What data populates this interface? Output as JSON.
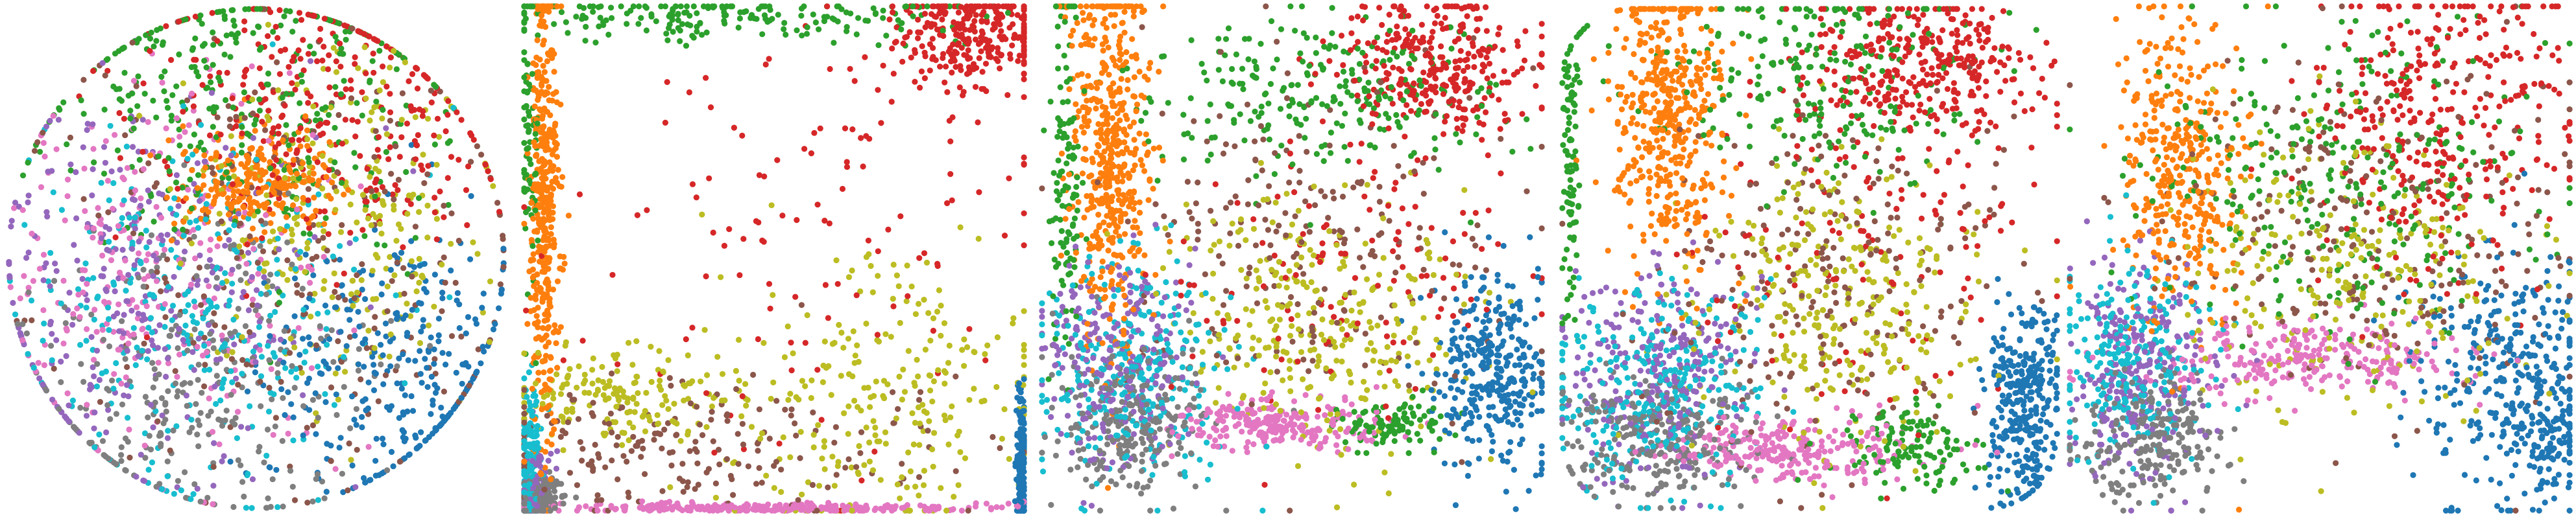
{
  "figure": {
    "description_type": "scatter-panels",
    "panel_count": 5
  },
  "palette": {
    "blue": "#1f77b4",
    "orange": "#ff7f0e",
    "green": "#2ca02c",
    "red": "#d62728",
    "purple": "#9467bd",
    "brown": "#8c564b",
    "pink": "#e377c2",
    "gray": "#7f7f7f",
    "olive": "#bcbd22",
    "cyan": "#17becf"
  },
  "chart_data": [
    {
      "type": "scatter",
      "title": "",
      "xlabel": "",
      "ylabel": "",
      "axes_visible": false,
      "grid": false,
      "legend": "none",
      "xlim": [
        -1,
        1
      ],
      "ylim": [
        -1,
        1
      ],
      "shape": "disc",
      "clusters": [
        {
          "color": "red",
          "cx": 0.25,
          "cy": 0.55,
          "sx": 0.35,
          "sy": 0.3,
          "n": 320
        },
        {
          "color": "green",
          "cx": -0.05,
          "cy": 0.6,
          "sx": 0.4,
          "sy": 0.3,
          "n": 320
        },
        {
          "color": "orange",
          "cx": 0.0,
          "cy": 0.3,
          "sx": 0.14,
          "sy": 0.1,
          "n": 260
        },
        {
          "color": "olive",
          "cx": 0.35,
          "cy": 0.15,
          "sx": 0.3,
          "sy": 0.35,
          "n": 250
        },
        {
          "color": "brown",
          "cx": 0.1,
          "cy": 0.05,
          "sx": 0.5,
          "sy": 0.5,
          "n": 260
        },
        {
          "color": "purple",
          "cx": -0.45,
          "cy": -0.15,
          "sx": 0.35,
          "sy": 0.35,
          "n": 300
        },
        {
          "color": "cyan",
          "cx": -0.25,
          "cy": -0.2,
          "sx": 0.35,
          "sy": 0.35,
          "n": 300
        },
        {
          "color": "pink",
          "cx": -0.4,
          "cy": -0.05,
          "sx": 0.35,
          "sy": 0.4,
          "n": 260
        },
        {
          "color": "gray",
          "cx": -0.25,
          "cy": -0.55,
          "sx": 0.35,
          "sy": 0.3,
          "n": 280
        },
        {
          "color": "blue",
          "cx": 0.55,
          "cy": -0.45,
          "sx": 0.25,
          "sy": 0.3,
          "n": 300
        }
      ]
    },
    {
      "type": "scatter",
      "title": "",
      "xlabel": "",
      "ylabel": "",
      "axes_visible": false,
      "grid": false,
      "legend": "none",
      "xlim": [
        -1,
        1
      ],
      "ylim": [
        -1,
        1
      ],
      "shape": "square",
      "clusters": [
        {
          "color": "orange",
          "cx": -0.91,
          "cy": 0.2,
          "sx": 0.03,
          "sy": 0.5,
          "n": 420
        },
        {
          "color": "red",
          "cx": 0.8,
          "cy": 0.88,
          "sx": 0.15,
          "sy": 0.1,
          "n": 300
        },
        {
          "color": "green",
          "cx": -0.2,
          "cy": 0.95,
          "sx": 0.45,
          "sy": 0.05,
          "n": 200
        },
        {
          "color": "green",
          "cx": -0.97,
          "cy": 0.5,
          "sx": 0.02,
          "sy": 0.3,
          "n": 80
        },
        {
          "color": "olive",
          "cx": 0.4,
          "cy": -0.55,
          "sx": 0.35,
          "sy": 0.3,
          "n": 260
        },
        {
          "color": "olive",
          "cx": -0.6,
          "cy": -0.55,
          "sx": 0.25,
          "sy": 0.1,
          "n": 160
        },
        {
          "color": "brown",
          "cx": -0.3,
          "cy": -0.75,
          "sx": 0.5,
          "sy": 0.15,
          "n": 200
        },
        {
          "color": "pink",
          "cx": 0.0,
          "cy": -0.98,
          "sx": 0.45,
          "sy": 0.01,
          "n": 300
        },
        {
          "color": "cyan",
          "cx": -0.97,
          "cy": -0.8,
          "sx": 0.02,
          "sy": 0.15,
          "n": 160
        },
        {
          "color": "gray",
          "cx": -0.93,
          "cy": -0.95,
          "sx": 0.05,
          "sy": 0.04,
          "n": 160
        },
        {
          "color": "purple",
          "cx": -0.95,
          "cy": -0.9,
          "sx": 0.03,
          "sy": 0.08,
          "n": 100
        },
        {
          "color": "blue",
          "cx": 0.98,
          "cy": -0.8,
          "sx": 0.01,
          "sy": 0.15,
          "n": 200
        },
        {
          "color": "red",
          "cx": 0.1,
          "cy": 0.05,
          "sx": 0.5,
          "sy": 0.5,
          "n": 120
        }
      ]
    },
    {
      "type": "scatter",
      "title": "",
      "xlabel": "",
      "ylabel": "",
      "axes_visible": false,
      "grid": false,
      "legend": "none",
      "xlim": [
        -1,
        1
      ],
      "ylim": [
        -1,
        1
      ],
      "shape": "square",
      "clusters": [
        {
          "color": "orange",
          "cx": -0.72,
          "cy": 0.4,
          "sx": 0.08,
          "sy": 0.4,
          "n": 500
        },
        {
          "color": "red",
          "cx": 0.55,
          "cy": 0.75,
          "sx": 0.2,
          "sy": 0.15,
          "n": 320
        },
        {
          "color": "green",
          "cx": 0.1,
          "cy": 0.65,
          "sx": 0.35,
          "sy": 0.15,
          "n": 260
        },
        {
          "color": "green",
          "cx": -0.9,
          "cy": 0.3,
          "sx": 0.03,
          "sy": 0.4,
          "n": 120
        },
        {
          "color": "green",
          "cx": 0.4,
          "cy": -0.65,
          "sx": 0.1,
          "sy": 0.05,
          "n": 100
        },
        {
          "color": "olive",
          "cx": 0.1,
          "cy": -0.25,
          "sx": 0.3,
          "sy": 0.25,
          "n": 300
        },
        {
          "color": "brown",
          "cx": 0.1,
          "cy": 0.1,
          "sx": 0.4,
          "sy": 0.35,
          "n": 220
        },
        {
          "color": "blue",
          "cx": 0.8,
          "cy": -0.45,
          "sx": 0.12,
          "sy": 0.2,
          "n": 340
        },
        {
          "color": "pink",
          "cx": -0.05,
          "cy": -0.65,
          "sx": 0.2,
          "sy": 0.05,
          "n": 240
        },
        {
          "color": "purple",
          "cx": -0.7,
          "cy": -0.4,
          "sx": 0.15,
          "sy": 0.2,
          "n": 260
        },
        {
          "color": "cyan",
          "cx": -0.65,
          "cy": -0.45,
          "sx": 0.18,
          "sy": 0.22,
          "n": 300
        },
        {
          "color": "gray",
          "cx": -0.65,
          "cy": -0.65,
          "sx": 0.15,
          "sy": 0.15,
          "n": 240
        },
        {
          "color": "red",
          "cx": 0.3,
          "cy": -0.1,
          "sx": 0.35,
          "sy": 0.3,
          "n": 120
        }
      ]
    },
    {
      "type": "scatter",
      "title": "",
      "xlabel": "",
      "ylabel": "",
      "axes_visible": false,
      "grid": false,
      "legend": "none",
      "xlim": [
        -1,
        1
      ],
      "ylim": [
        -1,
        1
      ],
      "shape": "rounded",
      "clusters": [
        {
          "color": "orange",
          "cx": -0.55,
          "cy": 0.55,
          "sx": 0.12,
          "sy": 0.3,
          "n": 460
        },
        {
          "color": "red",
          "cx": 0.45,
          "cy": 0.75,
          "sx": 0.25,
          "sy": 0.15,
          "n": 340
        },
        {
          "color": "green",
          "cx": 0.05,
          "cy": 0.7,
          "sx": 0.3,
          "sy": 0.2,
          "n": 240
        },
        {
          "color": "green",
          "cx": -0.95,
          "cy": 0.3,
          "sx": 0.02,
          "sy": 0.35,
          "n": 100
        },
        {
          "color": "green",
          "cx": 0.4,
          "cy": -0.75,
          "sx": 0.15,
          "sy": 0.08,
          "n": 120
        },
        {
          "color": "olive",
          "cx": 0.1,
          "cy": -0.2,
          "sx": 0.3,
          "sy": 0.3,
          "n": 300
        },
        {
          "color": "brown",
          "cx": 0.05,
          "cy": -0.1,
          "sx": 0.35,
          "sy": 0.35,
          "n": 220
        },
        {
          "color": "blue",
          "cx": 0.85,
          "cy": -0.55,
          "sx": 0.08,
          "sy": 0.2,
          "n": 320
        },
        {
          "color": "pink",
          "cx": -0.05,
          "cy": -0.75,
          "sx": 0.25,
          "sy": 0.06,
          "n": 260
        },
        {
          "color": "purple",
          "cx": -0.6,
          "cy": -0.45,
          "sx": 0.18,
          "sy": 0.2,
          "n": 280
        },
        {
          "color": "cyan",
          "cx": -0.6,
          "cy": -0.5,
          "sx": 0.2,
          "sy": 0.2,
          "n": 300
        },
        {
          "color": "gray",
          "cx": -0.6,
          "cy": -0.7,
          "sx": 0.2,
          "sy": 0.12,
          "n": 280
        },
        {
          "color": "red",
          "cx": 0.2,
          "cy": 0.0,
          "sx": 0.35,
          "sy": 0.3,
          "n": 120
        }
      ]
    },
    {
      "type": "scatter",
      "title": "",
      "xlabel": "",
      "ylabel": "",
      "axes_visible": false,
      "grid": false,
      "legend": "none",
      "xlim": [
        -1,
        1
      ],
      "ylim": [
        -1,
        1
      ],
      "shape": "square",
      "clusters": [
        {
          "color": "orange",
          "cx": -0.55,
          "cy": 0.35,
          "sx": 0.12,
          "sy": 0.3,
          "n": 380
        },
        {
          "color": "red",
          "cx": 0.5,
          "cy": 0.55,
          "sx": 0.25,
          "sy": 0.3,
          "n": 340
        },
        {
          "color": "green",
          "cx": 0.1,
          "cy": 0.3,
          "sx": 0.4,
          "sy": 0.3,
          "n": 300
        },
        {
          "color": "olive",
          "cx": 0.15,
          "cy": -0.05,
          "sx": 0.35,
          "sy": 0.3,
          "n": 260
        },
        {
          "color": "brown",
          "cx": 0.2,
          "cy": 0.1,
          "sx": 0.4,
          "sy": 0.35,
          "n": 240
        },
        {
          "color": "blue",
          "cx": 0.75,
          "cy": -0.45,
          "sx": 0.18,
          "sy": 0.25,
          "n": 300
        },
        {
          "color": "pink",
          "cx": -0.05,
          "cy": -0.4,
          "sx": 0.35,
          "sy": 0.08,
          "n": 260
        },
        {
          "color": "purple",
          "cx": -0.7,
          "cy": -0.45,
          "sx": 0.15,
          "sy": 0.2,
          "n": 260
        },
        {
          "color": "cyan",
          "cx": -0.75,
          "cy": -0.4,
          "sx": 0.15,
          "sy": 0.2,
          "n": 260
        },
        {
          "color": "gray",
          "cx": -0.65,
          "cy": -0.7,
          "sx": 0.15,
          "sy": 0.12,
          "n": 240
        },
        {
          "color": "blue",
          "cx": 0.9,
          "cy": -0.7,
          "sx": 0.06,
          "sy": 0.15,
          "n": 100
        }
      ]
    }
  ]
}
